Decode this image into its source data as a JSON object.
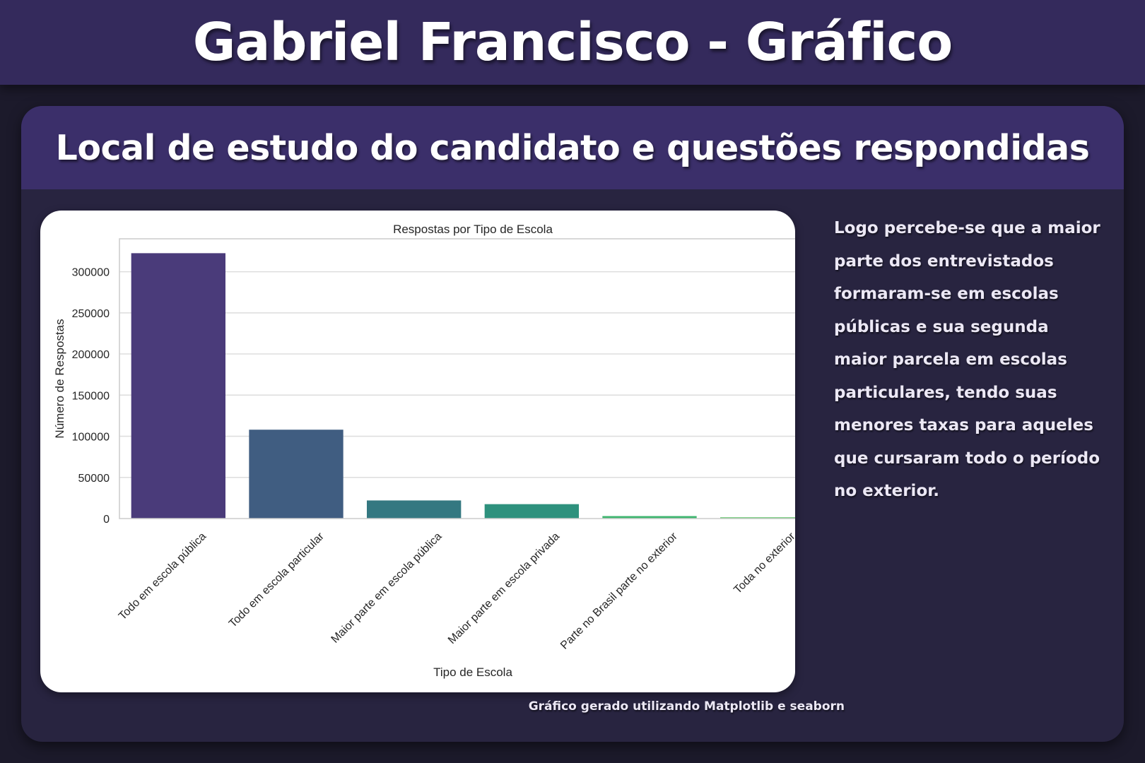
{
  "page": {
    "title": "Gabriel Francisco - Gráfico",
    "subtitle": "Local de estudo do candidato e questões respondidas",
    "description": "Logo percebe-se que  a maior parte dos entrevistados formaram-se em escolas públicas e sua segunda maior parcela em escolas particulares, tendo suas menores taxas para aqueles que cursaram todo o período no exterior.",
    "footnote": "Gráfico gerado utilizando Matplotlib e seaborn"
  },
  "chart_data": {
    "type": "bar",
    "title": "Respostas por Tipo de Escola",
    "xlabel": "Tipo de Escola",
    "ylabel": "Número de Respostas",
    "categories": [
      "Todo em escola pública",
      "Todo em escola particular",
      "Maior parte em escola pública",
      "Maior parte em escola privada",
      "Parte no Brasil parte no exterior",
      "Toda no exterior"
    ],
    "values": [
      322500,
      108000,
      22000,
      17500,
      3000,
      1500
    ],
    "colors": [
      "#4a3b7a",
      "#405d81",
      "#347881",
      "#2e917d",
      "#3db56e",
      "#57c060"
    ],
    "ylim": [
      0,
      340000
    ],
    "yticks": [
      0,
      50000,
      100000,
      150000,
      200000,
      250000,
      300000
    ],
    "grid": true
  }
}
